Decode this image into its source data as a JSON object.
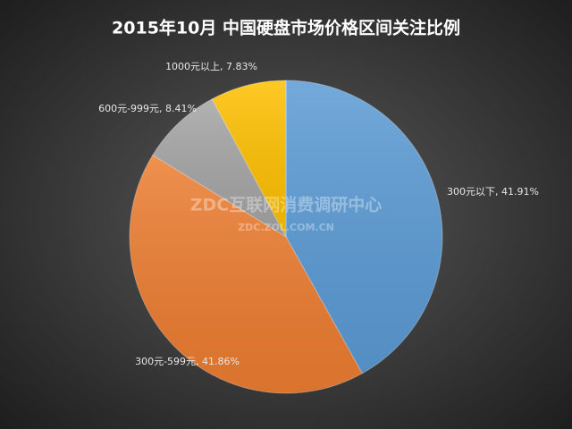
{
  "chart_data": {
    "type": "pie",
    "title": "2015年10月  中国硬盘市场价格区间关注比例",
    "values": [
      41.91,
      41.86,
      8.41,
      7.83
    ],
    "value_labels": [
      "300元以下, 41.91%",
      "300元-599元, 41.86%",
      "600元-999元, 8.41%",
      "1000元以上, 7.83%"
    ],
    "colors": [
      "#5b9bd5",
      "#ed7d31",
      "#a5a5a5",
      "#ffc000"
    ],
    "watermark": "ZDC互联网消费调研中心",
    "watermark_url": "ZDC.ZOL.COM.CN"
  }
}
